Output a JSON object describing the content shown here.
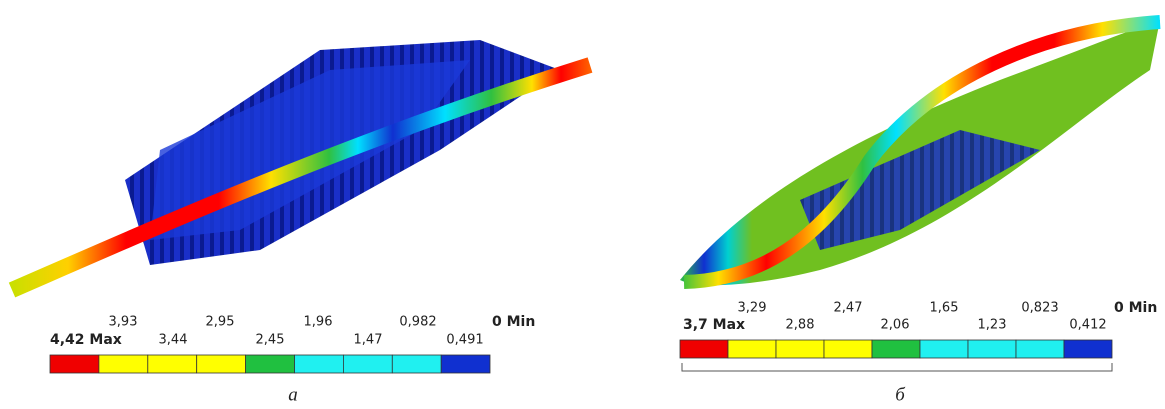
{
  "panels": [
    {
      "legend": {
        "upper_labels": [
          "3,93",
          "2,95",
          "1,96",
          "0,982",
          "0 Min"
        ],
        "lower_labels": [
          "4,42 Max",
          "3,44",
          "2,45",
          "1,47",
          "0,491"
        ]
      },
      "caption": "а"
    },
    {
      "legend": {
        "upper_labels": [
          "3,29",
          "2,47",
          "1,65",
          "0,823",
          "0 Min"
        ],
        "lower_labels": [
          "3,7 Max",
          "2,88",
          "2,06",
          "1,23",
          "0,412"
        ]
      },
      "caption": "б"
    }
  ]
}
